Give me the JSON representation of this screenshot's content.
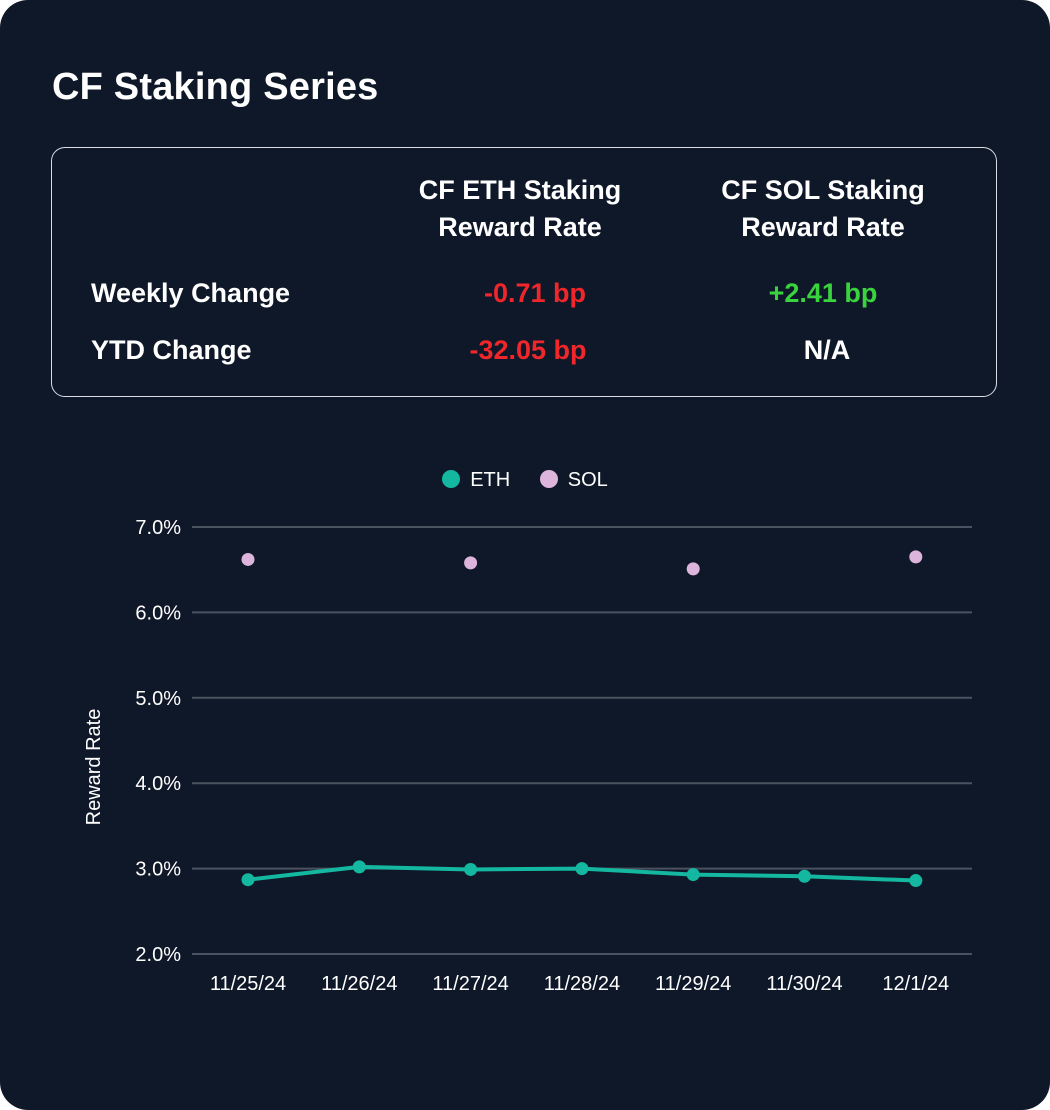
{
  "title": "CF Staking Series",
  "summary": {
    "columns": [
      "CF ETH Staking\nReward Rate",
      "CF SOL Staking\nReward Rate"
    ],
    "col1_line1": "CF ETH Staking",
    "col1_line2": "Reward Rate",
    "col2_line1": "CF SOL Staking",
    "col2_line2": "Reward Rate",
    "rows": [
      {
        "label": "Weekly Change",
        "eth": "-0.71 bp",
        "sol": "+2.41 bp"
      },
      {
        "label": "YTD Change",
        "eth": "-32.05 bp",
        "sol": "N/A"
      }
    ],
    "colors": {
      "negative": "#f0262b",
      "positive": "#39d33e"
    }
  },
  "chart_data": {
    "type": "line",
    "categories": [
      "11/25/24",
      "11/26/24",
      "11/27/24",
      "11/28/24",
      "11/29/24",
      "11/30/24",
      "12/1/24"
    ],
    "series": [
      {
        "name": "ETH",
        "kind": "line",
        "color": "#14b8a0",
        "values": [
          2.87,
          3.02,
          2.99,
          3.0,
          2.93,
          2.91,
          2.86
        ]
      },
      {
        "name": "SOL",
        "kind": "scatter",
        "color": "#dcb4dc",
        "values": [
          6.62,
          null,
          6.58,
          null,
          6.51,
          null,
          6.65
        ]
      }
    ],
    "ylabel": "Reward Rate",
    "xlabel": "",
    "ylim": [
      2.0,
      7.0
    ],
    "yticks": [
      "2.0%",
      "3.0%",
      "4.0%",
      "5.0%",
      "6.0%",
      "7.0%"
    ],
    "grid": true,
    "legend": "top-center"
  }
}
